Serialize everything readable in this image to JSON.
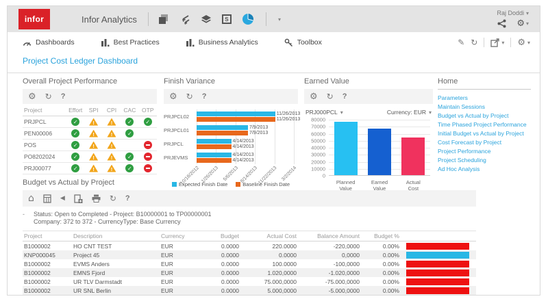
{
  "topbar": {
    "brand": "infor",
    "app_title": "Infor Analytics",
    "user_name": "Raj Doddi"
  },
  "nav": {
    "items": [
      {
        "label": "Dashboards"
      },
      {
        "label": "Best Practices"
      },
      {
        "label": "Business Analytics"
      },
      {
        "label": "Toolbox"
      }
    ]
  },
  "page_title": "Project Cost Ledger Dashboard",
  "icons": {
    "gear": "⚙",
    "refresh": "↻",
    "help": "?",
    "home": "⌂",
    "back": "◀",
    "edit": "✎",
    "chevron_down": "▾"
  },
  "colors": {
    "accent_blue": "#2aa3dc",
    "bar_cyan": "#29b7e5",
    "bar_orange": "#e8681c",
    "ev_planned": "#27c0f2",
    "ev_earned": "#1560d0",
    "ev_actual": "#f0325e",
    "status_green": "#2f9e41",
    "status_yellow": "#f2a51a",
    "status_red": "#e3262e",
    "table_bar_red": "#ee1111",
    "infor_red": "#da2128"
  },
  "panels": {
    "performance": {
      "title": "Overall Project Performance",
      "columns": [
        "Project",
        "Effort",
        "SPI",
        "CPI",
        "CAC",
        "OTP"
      ],
      "rows": [
        {
          "project": "PRJPCL",
          "statuses": [
            "ok",
            "warn",
            "warn",
            "ok",
            "ok"
          ]
        },
        {
          "project": "PEN00006",
          "statuses": [
            "ok",
            "warn",
            "warn",
            "ok",
            "none"
          ]
        },
        {
          "project": "POS",
          "statuses": [
            "ok",
            "warn",
            "warn",
            "none",
            "stop"
          ]
        },
        {
          "project": "PO8202024",
          "statuses": [
            "ok",
            "warn",
            "warn",
            "ok",
            "stop"
          ]
        },
        {
          "project": "PRJ00077",
          "statuses": [
            "ok",
            "warn",
            "warn",
            "ok",
            "stop"
          ]
        }
      ]
    },
    "finish_variance": {
      "title": "Finish Variance"
    },
    "earned_value": {
      "title": "Earned Value",
      "project_selector": "PRJ000PCL",
      "currency_selector": "Currency: EUR"
    },
    "home": {
      "title": "Home",
      "links": [
        "Parameters",
        "Maintain Sessions",
        "Budget vs Actual by Project",
        "Time Phased Project Performance",
        "Initial Budget vs Actual by Project",
        "Cost Forecast by Project",
        "Project Performance",
        "Project Scheduling",
        "Ad Hoc Analysis"
      ]
    },
    "budget": {
      "title": "Budget vs Actual by Project",
      "collapse_marker": "-",
      "status_line_1": "Status: Open to Completed - Project: B10000001 to TP00000001",
      "status_line_2": "Company: 372 to 372  - CurrencyType: Base Currency",
      "columns": [
        "Project",
        "Description",
        "Currency",
        "Budget",
        "Actual Cost",
        "Balance Amount",
        "Budget %"
      ],
      "rows": [
        {
          "project": "B1000002",
          "description": "HO CNT TEST",
          "currency": "EUR",
          "budget": "0.0000",
          "actual_cost": "220.0000",
          "balance": "-220,0000",
          "budget_pct": "0.00%",
          "bar": "red"
        },
        {
          "project": "KNP000045",
          "description": "Project 45",
          "currency": "EUR",
          "budget": "0.0000",
          "actual_cost": "0.0000",
          "balance": "0,0000",
          "budget_pct": "0.00%",
          "bar": "cyan"
        },
        {
          "project": "B1000002",
          "description": "EVMS Anders",
          "currency": "EUR",
          "budget": "0.0000",
          "actual_cost": "100.0000",
          "balance": "-100,0000",
          "budget_pct": "0.00%",
          "bar": "red"
        },
        {
          "project": "B1000002",
          "description": "EMNS Fjord",
          "currency": "EUR",
          "budget": "0.0000",
          "actual_cost": "1.020,0000",
          "balance": "-1.020,0000",
          "budget_pct": "0.00%",
          "bar": "red"
        },
        {
          "project": "B1000002",
          "description": "UR TLV Darmstadt",
          "currency": "EUR",
          "budget": "0.0000",
          "actual_cost": "75.000,0000",
          "balance": "-75.000,0000",
          "budget_pct": "0.00%",
          "bar": "red"
        },
        {
          "project": "B1000002",
          "description": "UR SNL Berlin",
          "currency": "EUR",
          "budget": "0.0000",
          "actual_cost": "5.000,0000",
          "balance": "-5.000,0000",
          "budget_pct": "0.00%",
          "bar": "red"
        }
      ]
    }
  },
  "chart_data": [
    {
      "id": "finish_variance",
      "type": "bar",
      "orientation": "horizontal",
      "title": "Finish Variance",
      "categories": [
        "PRJPCL02",
        "PRJPCL01",
        "PRJPCL",
        "PRJEVMS"
      ],
      "series": [
        {
          "name": "Expected Finish Date",
          "color_key": "bar_cyan",
          "values": [
            "11/26/2013",
            "7/9/2013",
            "4/14/2013",
            "4/14/2013"
          ]
        },
        {
          "name": "Baseline Finish Date",
          "color_key": "bar_orange",
          "values": [
            "11/26/2013",
            "7/9/2013",
            "4/14/2013",
            "4/14/2013"
          ]
        }
      ],
      "x_min": "10/18/2012",
      "x_max": "3/2/2014",
      "x_ticks": [
        "10/18/2012",
        "1/26/2013",
        "5/6/2013",
        "8/14/2013",
        "11/22/2013",
        "3/2/2014"
      ],
      "legend_position": "bottom",
      "grid": true
    },
    {
      "id": "earned_value",
      "type": "bar",
      "title": "Earned Value",
      "categories": [
        "Planned Value",
        "Earned Value",
        "Actual Cost"
      ],
      "values": [
        76000,
        66000,
        54000
      ],
      "color_keys": [
        "ev_planned",
        "ev_earned",
        "ev_actual"
      ],
      "ylim": [
        0,
        80000
      ],
      "yticks": [
        0,
        10000,
        20000,
        30000,
        40000,
        50000,
        60000,
        70000,
        80000
      ],
      "grid": true,
      "legend_position": "none"
    }
  ]
}
